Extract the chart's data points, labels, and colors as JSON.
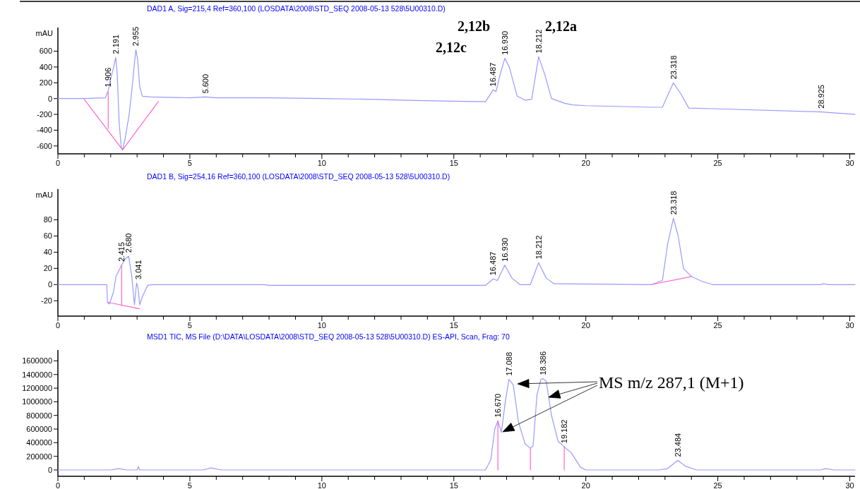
{
  "chart_data": [
    {
      "type": "line",
      "title": "DAD1 A, Sig=215,4 Ref=360,100 (LOSDATA\\2008\\STD_SEQ 2008-05-13 528\\5U00310.D)",
      "ylabel": "mAU",
      "xlim": [
        0,
        30.2
      ],
      "ylim": [
        -700,
        900
      ],
      "xticks": [
        0,
        {
          "value": 1,
          "label": null
        },
        {
          "value": 2,
          "label": null
        },
        {
          "value": 3,
          "label": null
        },
        {
          "value": 4,
          "label": null
        },
        5,
        {
          "value": 6,
          "label": null
        },
        {
          "value": 7,
          "label": null
        },
        {
          "value": 8,
          "label": null
        },
        {
          "value": 9,
          "label": null
        },
        10,
        {
          "value": 11,
          "label": null
        },
        {
          "value": 12,
          "label": null
        },
        {
          "value": 13,
          "label": null
        },
        {
          "value": 14,
          "label": null
        },
        15,
        {
          "value": 16,
          "label": null
        },
        {
          "value": 17,
          "label": null
        },
        {
          "value": 18,
          "label": null
        },
        {
          "value": 19,
          "label": null
        },
        20,
        {
          "value": 21,
          "label": null
        },
        {
          "value": 22,
          "label": null
        },
        {
          "value": 23,
          "label": null
        },
        {
          "value": 24,
          "label": null
        },
        25,
        {
          "value": 26,
          "label": null
        },
        {
          "value": 27,
          "label": null
        },
        {
          "value": 28,
          "label": null
        },
        {
          "value": 29,
          "label": null
        },
        30
      ],
      "yticks": [
        -600,
        -400,
        -200,
        0,
        200,
        400,
        600
      ],
      "series": [
        {
          "color": "#9999ff",
          "x": [
            0,
            1.0,
            1.8,
            1.906,
            2.0,
            2.1,
            2.191,
            2.25,
            2.32,
            2.4,
            2.45,
            2.55,
            2.7,
            2.8,
            2.9,
            2.955,
            3.02,
            3.1,
            3.2,
            3.5,
            5.0,
            5.6,
            6.0,
            8,
            10,
            12,
            13,
            14.5,
            16.2,
            16.487,
            16.6,
            16.75,
            16.93,
            17.1,
            17.4,
            17.7,
            17.95,
            18.212,
            18.45,
            18.7,
            19.2,
            19.5,
            20,
            22.5,
            22.9,
            23.318,
            23.6,
            23.9,
            25,
            28.925,
            30.2
          ],
          "values": [
            0,
            0,
            10,
            100,
            250,
            380,
            520,
            300,
            -300,
            -620,
            -650,
            -500,
            -200,
            100,
            450,
            620,
            500,
            150,
            30,
            20,
            10,
            20,
            10,
            10,
            0,
            -10,
            -20,
            -30,
            -40,
            110,
            90,
            300,
            510,
            400,
            30,
            -20,
            -10,
            530,
            300,
            0,
            -60,
            -80,
            -90,
            -110,
            -110,
            200,
            60,
            -120,
            -130,
            -170,
            -200
          ]
        },
        {
          "color": "#ff66cc",
          "x": [
            1.0,
            2.45,
            3.8
          ],
          "values": [
            -10,
            -650,
            -40
          ]
        },
        {
          "color": "#ff66cc",
          "x": [
            1.906,
            1.906
          ],
          "values": [
            80,
            -380
          ]
        }
      ],
      "annotations": [
        {
          "text": "1.906",
          "x": 1.906,
          "y": 100
        },
        {
          "text": "2.191",
          "x": 2.191,
          "y": 520
        },
        {
          "text": "2.955",
          "x": 2.955,
          "y": 620
        },
        {
          "text": "5.600",
          "x": 5.6,
          "y": 20
        },
        {
          "text": "16.487",
          "x": 16.487,
          "y": 110
        },
        {
          "text": "16.930",
          "x": 16.93,
          "y": 510
        },
        {
          "text": "18.212",
          "x": 18.212,
          "y": 530
        },
        {
          "text": "23.318",
          "x": 23.318,
          "y": 200
        },
        {
          "text": "28.925",
          "x": 28.925,
          "y": -170
        },
        "2,12c",
        "2,12b",
        "2,12a"
      ]
    },
    {
      "type": "line",
      "title": "DAD1 B, Sig=254,16 Ref=360,100 (LOSDATA\\2008\\STD_SEQ 2008-05-13 528\\5U00310.D)",
      "ylabel": "mAU",
      "xlim": [
        0,
        30.2
      ],
      "ylim": [
        -39,
        118
      ],
      "xticks": [
        0,
        {
          "value": 1,
          "label": null
        },
        {
          "value": 2,
          "label": null
        },
        {
          "value": 3,
          "label": null
        },
        {
          "value": 4,
          "label": null
        },
        5,
        {
          "value": 6,
          "label": null
        },
        {
          "value": 7,
          "label": null
        },
        {
          "value": 8,
          "label": null
        },
        {
          "value": 9,
          "label": null
        },
        10,
        {
          "value": 11,
          "label": null
        },
        {
          "value": 12,
          "label": null
        },
        {
          "value": 13,
          "label": null
        },
        {
          "value": 14,
          "label": null
        },
        15,
        {
          "value": 16,
          "label": null
        },
        {
          "value": 17,
          "label": null
        },
        {
          "value": 18,
          "label": null
        },
        {
          "value": 19,
          "label": null
        },
        20,
        {
          "value": 21,
          "label": null
        },
        {
          "value": 22,
          "label": null
        },
        {
          "value": 23,
          "label": null
        },
        {
          "value": 24,
          "label": null
        },
        25,
        {
          "value": 26,
          "label": null
        },
        {
          "value": 27,
          "label": null
        },
        {
          "value": 28,
          "label": null
        },
        {
          "value": 29,
          "label": null
        },
        30
      ],
      "yticks": [
        -20,
        0,
        20,
        40,
        60,
        80
      ],
      "series": [
        {
          "color": "#9999ff",
          "x": [
            0,
            1.85,
            1.88,
            1.95,
            2.1,
            2.2,
            2.415,
            2.55,
            2.68,
            2.8,
            2.9,
            2.98,
            3.041,
            3.1,
            3.2,
            3.4,
            3.6,
            7.8,
            8.0,
            16.2,
            16.487,
            16.65,
            16.93,
            17.2,
            17.5,
            17.9,
            18.212,
            18.5,
            18.8,
            22.5,
            22.9,
            23.1,
            23.318,
            23.5,
            23.7,
            24.0,
            24.4,
            24.8,
            28.9,
            29.0,
            29.2,
            30.2
          ],
          "values": [
            0,
            0,
            -22,
            -24,
            -10,
            10,
            24,
            32,
            35,
            10,
            -25,
            2,
            -5,
            -25,
            -15,
            -1,
            0,
            0,
            -1,
            -1,
            7,
            5,
            24,
            8,
            0,
            0,
            27,
            8,
            1,
            0,
            5,
            50,
            82,
            60,
            20,
            10,
            4,
            0,
            0,
            1,
            0,
            0
          ]
        },
        {
          "color": "#ff66cc",
          "x": [
            1.9,
            3.1
          ],
          "values": [
            -22,
            -30
          ]
        },
        {
          "color": "#ff66cc",
          "x": [
            2.415,
            2.415
          ],
          "values": [
            24,
            -26
          ]
        },
        {
          "color": "#ff66cc",
          "x": [
            22.5,
            24.0
          ],
          "values": [
            0,
            10
          ]
        }
      ],
      "annotations": [
        {
          "text": "2.415",
          "x": 2.415,
          "y": 24
        },
        {
          "text": "2.680",
          "x": 2.68,
          "y": 35
        },
        {
          "text": "3.041",
          "x": 3.041,
          "y": 2
        },
        {
          "text": "16.487",
          "x": 16.487,
          "y": 7
        },
        {
          "text": "16.930",
          "x": 16.93,
          "y": 24
        },
        {
          "text": "18.212",
          "x": 18.212,
          "y": 27
        },
        {
          "text": "23.318",
          "x": 23.318,
          "y": 82
        }
      ]
    },
    {
      "type": "line",
      "title": "MSD1 TIC, MS File (D:\\DATA\\LOSDATA\\2008\\STD_SEQ 2008-05-13 528\\5U00310.D)   ES-API, Scan, Frag: 70",
      "xlim": [
        0,
        30.2
      ],
      "ylim": [
        -93000,
        1760000
      ],
      "xticks": [
        0,
        {
          "value": 1,
          "label": null
        },
        {
          "value": 2,
          "label": null
        },
        {
          "value": 3,
          "label": null
        },
        {
          "value": 4,
          "label": null
        },
        5,
        {
          "value": 6,
          "label": null
        },
        {
          "value": 7,
          "label": null
        },
        {
          "value": 8,
          "label": null
        },
        {
          "value": 9,
          "label": null
        },
        10,
        {
          "value": 11,
          "label": null
        },
        {
          "value": 12,
          "label": null
        },
        {
          "value": 13,
          "label": null
        },
        {
          "value": 14,
          "label": null
        },
        15,
        {
          "value": 16,
          "label": null
        },
        {
          "value": 17,
          "label": null
        },
        {
          "value": 18,
          "label": null
        },
        {
          "value": 19,
          "label": null
        },
        20,
        {
          "value": 21,
          "label": null
        },
        {
          "value": 22,
          "label": null
        },
        {
          "value": 23,
          "label": null
        },
        {
          "value": 24,
          "label": null
        },
        25,
        {
          "value": 26,
          "label": null
        },
        {
          "value": 27,
          "label": null
        },
        {
          "value": 28,
          "label": null
        },
        {
          "value": 29,
          "label": null
        },
        30
      ],
      "yticks": [
        0,
        200000,
        400000,
        600000,
        800000,
        1000000,
        1200000,
        1400000,
        1600000
      ],
      "series": [
        {
          "color": "#9999ff",
          "x": [
            0,
            2.0,
            2.3,
            2.6,
            3.0,
            3.05,
            3.1,
            5.5,
            5.8,
            6.2,
            16.2,
            16.4,
            16.55,
            16.67,
            16.8,
            16.95,
            17.088,
            17.25,
            17.45,
            17.7,
            17.9,
            18.0,
            18.15,
            18.3,
            18.386,
            18.5,
            18.7,
            18.95,
            19.182,
            19.45,
            19.8,
            20.0,
            22.8,
            23.1,
            23.484,
            23.8,
            24.2,
            28.9,
            29.1,
            29.4,
            30.2
          ],
          "values": [
            0,
            0,
            20000,
            0,
            0,
            50000,
            0,
            0,
            30000,
            0,
            0,
            150000,
            600000,
            720000,
            550000,
            1000000,
            1330000,
            1250000,
            700000,
            380000,
            320000,
            350000,
            1100000,
            1330000,
            1340000,
            1300000,
            800000,
            420000,
            340000,
            250000,
            40000,
            0,
            0,
            20000,
            140000,
            50000,
            0,
            0,
            20000,
            0,
            0
          ]
        },
        {
          "color": "#ff66cc",
          "x": [
            16.67,
            16.67
          ],
          "values": [
            0,
            720000
          ]
        },
        {
          "color": "#ff66cc",
          "x": [
            17.9,
            17.9
          ],
          "values": [
            0,
            320000
          ]
        },
        {
          "color": "#ff66cc",
          "x": [
            19.182,
            19.182
          ],
          "values": [
            0,
            340000
          ]
        }
      ],
      "annotations": [
        {
          "text": "16.670",
          "x": 16.67,
          "y": 720000
        },
        {
          "text": "17.088",
          "x": 17.088,
          "y": 1330000
        },
        {
          "text": "18.386",
          "x": 18.386,
          "y": 1340000
        },
        {
          "text": "19.182",
          "x": 19.182,
          "y": 340000
        },
        {
          "text": "23.484",
          "x": 23.484,
          "y": 140000
        },
        "MS m/z 287,1 (M+1)"
      ]
    }
  ]
}
